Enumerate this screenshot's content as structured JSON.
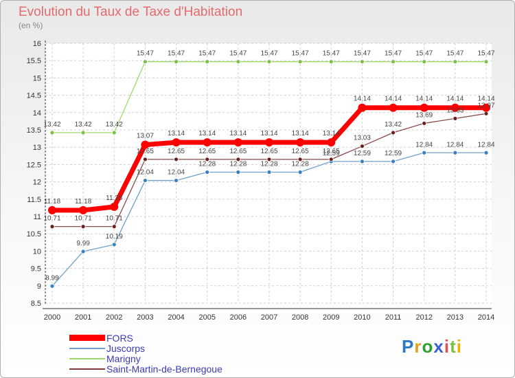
{
  "chart_data": {
    "type": "line",
    "title": "Evolution du Taux de Taxe d'Habitation",
    "subtitle": "(en %)",
    "xlabel": "",
    "ylabel": "",
    "categories": [
      "2000",
      "2001",
      "2002",
      "2003",
      "2004",
      "2005",
      "2006",
      "2007",
      "2008",
      "2009",
      "2010",
      "2011",
      "2012",
      "2013",
      "2014"
    ],
    "ylim": [
      8.5,
      16
    ],
    "yticks": [
      "8.5",
      "9",
      "9.5",
      "10",
      "10.5",
      "11",
      "11.5",
      "12",
      "12.5",
      "13",
      "13.5",
      "14",
      "14.5",
      "15",
      "15.5",
      "16"
    ],
    "grid": true,
    "legend_position": "bottom-left",
    "series": [
      {
        "name": "FORS",
        "color": "#ff0000",
        "values": [
          11.18,
          11.18,
          11.28,
          13.07,
          13.14,
          13.14,
          13.14,
          13.14,
          13.14,
          13.14,
          14.14,
          14.14,
          14.14,
          14.14,
          14.14
        ],
        "labels": [
          "11.18",
          "11.18",
          "11.28",
          "13.07",
          "13.14",
          "13.14",
          "13.14",
          "13.14",
          "13.14",
          "13.14",
          "14.14",
          "14.14",
          "14.14",
          "14.14",
          "14.14"
        ]
      },
      {
        "name": "Juscorps",
        "color": "#6fa0d0",
        "values": [
          8.99,
          9.99,
          10.19,
          12.04,
          12.04,
          12.28,
          12.28,
          12.28,
          12.28,
          12.59,
          12.59,
          12.59,
          12.84,
          12.84,
          12.84
        ],
        "labels": [
          "8.99",
          "9.99",
          "10.19",
          "12.04",
          "12.04",
          "12.28",
          "12.28",
          "12.28",
          "12.28",
          "12.59",
          "12.59",
          "12.59",
          "12.84",
          "12.84",
          "12.84"
        ]
      },
      {
        "name": "Marigny",
        "color": "#9fd86a",
        "values": [
          13.42,
          13.42,
          13.42,
          15.47,
          15.47,
          15.47,
          15.47,
          15.47,
          15.47,
          15.47,
          15.47,
          15.47,
          15.47,
          15.47,
          15.47
        ],
        "labels": [
          "13.42",
          "13.42",
          "13.42",
          "15.47",
          "15.47",
          "15.47",
          "15.47",
          "15.47",
          "15.47",
          "15.47",
          "15.47",
          "15.47",
          "15.47",
          "15.47",
          "15.47"
        ]
      },
      {
        "name": "Saint-Martin-de-Bernegoue",
        "color": "#7a3838",
        "values": [
          10.71,
          10.71,
          10.71,
          12.65,
          12.65,
          12.65,
          12.65,
          12.65,
          12.65,
          12.65,
          13.03,
          13.42,
          13.69,
          13.83,
          13.97
        ],
        "labels": [
          "10.71",
          "10.71",
          "10.71",
          "12.65",
          "12.65",
          "12.65",
          "12.65",
          "12.65",
          "12.65",
          "12.65",
          "13.03",
          "13.42",
          "13.69",
          "13.83",
          "13.97"
        ]
      }
    ]
  }
}
